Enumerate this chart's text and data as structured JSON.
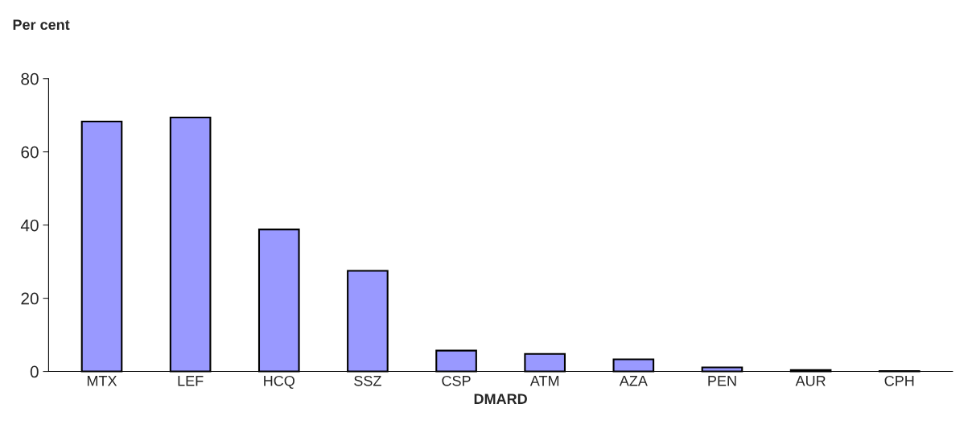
{
  "chart_data": {
    "type": "bar",
    "ylabel": "Per cent",
    "xlabel": "DMARD",
    "categories": [
      "MTX",
      "LEF",
      "HCQ",
      "SSZ",
      "CSP",
      "ATM",
      "AZA",
      "PEN",
      "AUR",
      "CPH"
    ],
    "values": [
      68.3,
      69.4,
      38.8,
      27.5,
      5.7,
      4.8,
      3.3,
      1.1,
      0.4,
      0.1
    ],
    "color": "#9999ff",
    "ylim": [
      0,
      80
    ],
    "yticks": [
      0,
      20,
      40,
      60,
      80
    ],
    "grid": false,
    "legend": false
  }
}
